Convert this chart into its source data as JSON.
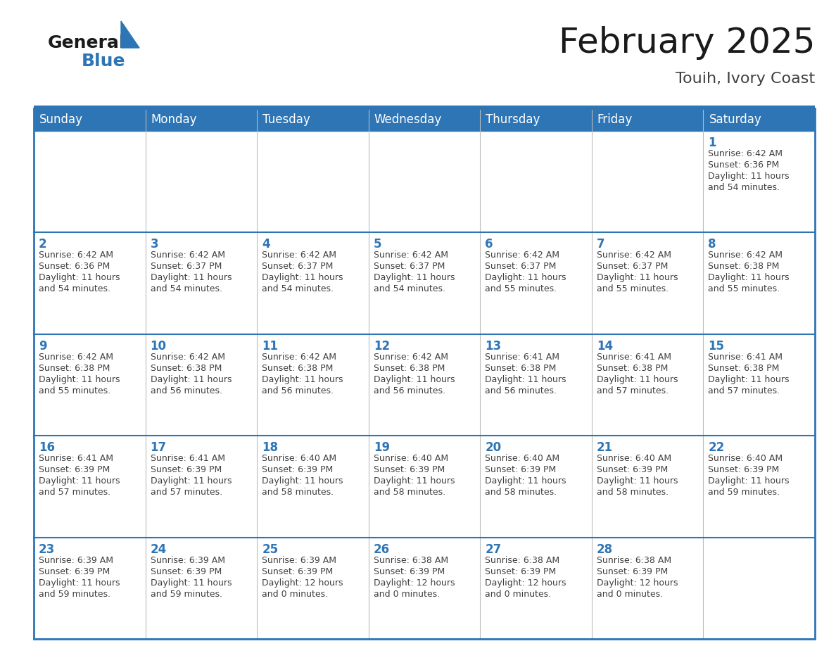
{
  "title": "February 2025",
  "subtitle": "Touih, Ivory Coast",
  "header_bg": "#2E75B6",
  "header_text": "#FFFFFF",
  "cell_bg": "#FFFFFF",
  "cell_bg_alt": "#F2F2F2",
  "day_number_color": "#2E75B6",
  "text_color": "#404040",
  "line_color": "#2E75B6",
  "separator_color": "#2E75B6",
  "days_of_week": [
    "Sunday",
    "Monday",
    "Tuesday",
    "Wednesday",
    "Thursday",
    "Friday",
    "Saturday"
  ],
  "weeks": [
    [
      {
        "day": null,
        "info": null
      },
      {
        "day": null,
        "info": null
      },
      {
        "day": null,
        "info": null
      },
      {
        "day": null,
        "info": null
      },
      {
        "day": null,
        "info": null
      },
      {
        "day": null,
        "info": null
      },
      {
        "day": 1,
        "info": "Sunrise: 6:42 AM\nSunset: 6:36 PM\nDaylight: 11 hours\nand 54 minutes."
      }
    ],
    [
      {
        "day": 2,
        "info": "Sunrise: 6:42 AM\nSunset: 6:36 PM\nDaylight: 11 hours\nand 54 minutes."
      },
      {
        "day": 3,
        "info": "Sunrise: 6:42 AM\nSunset: 6:37 PM\nDaylight: 11 hours\nand 54 minutes."
      },
      {
        "day": 4,
        "info": "Sunrise: 6:42 AM\nSunset: 6:37 PM\nDaylight: 11 hours\nand 54 minutes."
      },
      {
        "day": 5,
        "info": "Sunrise: 6:42 AM\nSunset: 6:37 PM\nDaylight: 11 hours\nand 54 minutes."
      },
      {
        "day": 6,
        "info": "Sunrise: 6:42 AM\nSunset: 6:37 PM\nDaylight: 11 hours\nand 55 minutes."
      },
      {
        "day": 7,
        "info": "Sunrise: 6:42 AM\nSunset: 6:37 PM\nDaylight: 11 hours\nand 55 minutes."
      },
      {
        "day": 8,
        "info": "Sunrise: 6:42 AM\nSunset: 6:38 PM\nDaylight: 11 hours\nand 55 minutes."
      }
    ],
    [
      {
        "day": 9,
        "info": "Sunrise: 6:42 AM\nSunset: 6:38 PM\nDaylight: 11 hours\nand 55 minutes."
      },
      {
        "day": 10,
        "info": "Sunrise: 6:42 AM\nSunset: 6:38 PM\nDaylight: 11 hours\nand 56 minutes."
      },
      {
        "day": 11,
        "info": "Sunrise: 6:42 AM\nSunset: 6:38 PM\nDaylight: 11 hours\nand 56 minutes."
      },
      {
        "day": 12,
        "info": "Sunrise: 6:42 AM\nSunset: 6:38 PM\nDaylight: 11 hours\nand 56 minutes."
      },
      {
        "day": 13,
        "info": "Sunrise: 6:41 AM\nSunset: 6:38 PM\nDaylight: 11 hours\nand 56 minutes."
      },
      {
        "day": 14,
        "info": "Sunrise: 6:41 AM\nSunset: 6:38 PM\nDaylight: 11 hours\nand 57 minutes."
      },
      {
        "day": 15,
        "info": "Sunrise: 6:41 AM\nSunset: 6:38 PM\nDaylight: 11 hours\nand 57 minutes."
      }
    ],
    [
      {
        "day": 16,
        "info": "Sunrise: 6:41 AM\nSunset: 6:39 PM\nDaylight: 11 hours\nand 57 minutes."
      },
      {
        "day": 17,
        "info": "Sunrise: 6:41 AM\nSunset: 6:39 PM\nDaylight: 11 hours\nand 57 minutes."
      },
      {
        "day": 18,
        "info": "Sunrise: 6:40 AM\nSunset: 6:39 PM\nDaylight: 11 hours\nand 58 minutes."
      },
      {
        "day": 19,
        "info": "Sunrise: 6:40 AM\nSunset: 6:39 PM\nDaylight: 11 hours\nand 58 minutes."
      },
      {
        "day": 20,
        "info": "Sunrise: 6:40 AM\nSunset: 6:39 PM\nDaylight: 11 hours\nand 58 minutes."
      },
      {
        "day": 21,
        "info": "Sunrise: 6:40 AM\nSunset: 6:39 PM\nDaylight: 11 hours\nand 58 minutes."
      },
      {
        "day": 22,
        "info": "Sunrise: 6:40 AM\nSunset: 6:39 PM\nDaylight: 11 hours\nand 59 minutes."
      }
    ],
    [
      {
        "day": 23,
        "info": "Sunrise: 6:39 AM\nSunset: 6:39 PM\nDaylight: 11 hours\nand 59 minutes."
      },
      {
        "day": 24,
        "info": "Sunrise: 6:39 AM\nSunset: 6:39 PM\nDaylight: 11 hours\nand 59 minutes."
      },
      {
        "day": 25,
        "info": "Sunrise: 6:39 AM\nSunset: 6:39 PM\nDaylight: 12 hours\nand 0 minutes."
      },
      {
        "day": 26,
        "info": "Sunrise: 6:38 AM\nSunset: 6:39 PM\nDaylight: 12 hours\nand 0 minutes."
      },
      {
        "day": 27,
        "info": "Sunrise: 6:38 AM\nSunset: 6:39 PM\nDaylight: 12 hours\nand 0 minutes."
      },
      {
        "day": 28,
        "info": "Sunrise: 6:38 AM\nSunset: 6:39 PM\nDaylight: 12 hours\nand 0 minutes."
      },
      {
        "day": null,
        "info": null
      }
    ]
  ],
  "logo_text_general": "General",
  "logo_text_blue": "Blue",
  "logo_color_general": "#1a1a1a",
  "logo_color_blue": "#2E75B6",
  "logo_triangle_color": "#2E75B6",
  "title_fontsize": 36,
  "subtitle_fontsize": 16,
  "dow_fontsize": 12,
  "day_num_fontsize": 12,
  "info_fontsize": 9
}
